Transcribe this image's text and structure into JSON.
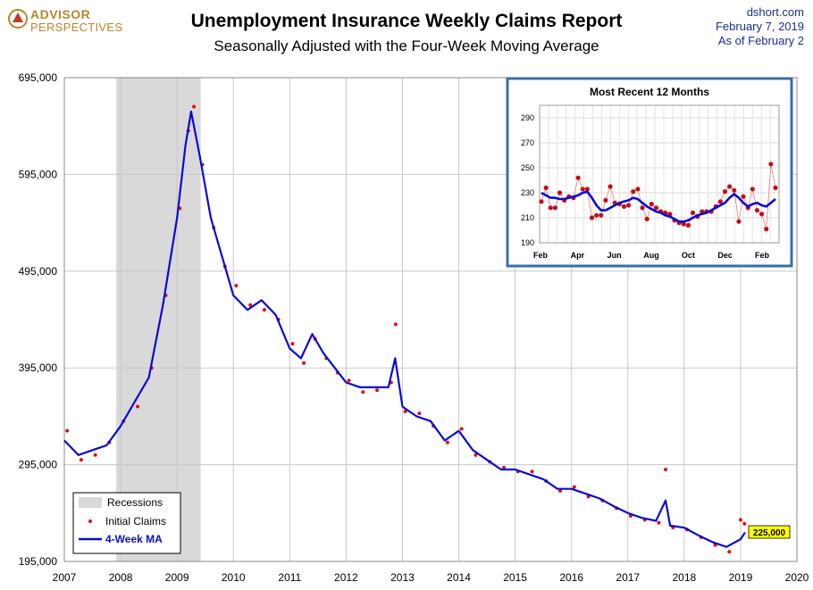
{
  "header": {
    "title": "Unemployment Insurance Weekly Claims Report",
    "subtitle": "Seasonally Adjusted with the Four-Week Moving Average",
    "logo_line1": "ADVISOR",
    "logo_line2": "PERSPECTIVES",
    "source": "dshort.com",
    "date": "February 7, 2019",
    "asof": "As  of February 2"
  },
  "colors": {
    "ma_line": "#0a0ad6",
    "claims_dots": "#dd1111",
    "recession": "#d9d9d9",
    "inset_border": "#3a6faa",
    "callout_bg": "#ffff00"
  },
  "chart_data": [
    {
      "type": "line",
      "title": "Unemployment Insurance Weekly Claims Report",
      "x_range": [
        2007,
        2020
      ],
      "x_ticks": [
        "2007",
        "2008",
        "2009",
        "2010",
        "2011",
        "2012",
        "2013",
        "2014",
        "2015",
        "2016",
        "2017",
        "2018",
        "2019",
        "2020"
      ],
      "ylim": [
        195000,
        695000
      ],
      "y_ticks": [
        "195,000",
        "295,000",
        "395,000",
        "495,000",
        "595,000",
        "695,000"
      ],
      "grid": true,
      "legend_position": "bottom-left",
      "legend": [
        "Recessions",
        "Initial Claims",
        "4-Week MA"
      ],
      "recession": {
        "start": 2007.92,
        "end": 2009.42
      },
      "callout": "225,000",
      "series": [
        {
          "name": "4-Week MA",
          "style": "line",
          "x": [
            2007.0,
            2007.25,
            2007.5,
            2007.75,
            2008.0,
            2008.25,
            2008.5,
            2008.75,
            2009.0,
            2009.15,
            2009.25,
            2009.4,
            2009.6,
            2009.8,
            2010.0,
            2010.25,
            2010.5,
            2010.75,
            2011.0,
            2011.2,
            2011.4,
            2011.6,
            2011.8,
            2012.0,
            2012.25,
            2012.5,
            2012.75,
            2012.87,
            2013.0,
            2013.25,
            2013.5,
            2013.75,
            2014.0,
            2014.25,
            2014.5,
            2014.75,
            2015.0,
            2015.25,
            2015.5,
            2015.75,
            2016.0,
            2016.25,
            2016.5,
            2016.75,
            2017.0,
            2017.25,
            2017.5,
            2017.67,
            2017.75,
            2018.0,
            2018.25,
            2018.5,
            2018.75,
            2019.0,
            2019.08
          ],
          "values": [
            320000,
            305000,
            310000,
            315000,
            335000,
            360000,
            385000,
            460000,
            550000,
            625000,
            660000,
            615000,
            550000,
            510000,
            470000,
            455000,
            465000,
            450000,
            415000,
            405000,
            430000,
            410000,
            395000,
            380000,
            375000,
            375000,
            375000,
            405000,
            355000,
            345000,
            340000,
            320000,
            330000,
            310000,
            300000,
            290000,
            290000,
            285000,
            280000,
            270000,
            270000,
            265000,
            260000,
            252000,
            245000,
            240000,
            237000,
            258000,
            232000,
            230000,
            222000,
            215000,
            210000,
            218000,
            225000
          ]
        },
        {
          "name": "Initial Claims",
          "style": "markers",
          "x": [
            2007.05,
            2007.3,
            2007.55,
            2007.8,
            2008.05,
            2008.3,
            2008.55,
            2008.8,
            2009.05,
            2009.2,
            2009.3,
            2009.45,
            2009.65,
            2009.85,
            2010.05,
            2010.3,
            2010.55,
            2010.8,
            2011.05,
            2011.25,
            2011.45,
            2011.65,
            2011.85,
            2012.05,
            2012.3,
            2012.55,
            2012.8,
            2012.88,
            2013.05,
            2013.3,
            2013.55,
            2013.8,
            2014.05,
            2014.3,
            2014.55,
            2014.8,
            2015.05,
            2015.3,
            2015.55,
            2015.8,
            2016.05,
            2016.3,
            2016.55,
            2016.8,
            2017.05,
            2017.3,
            2017.55,
            2017.67,
            2017.8,
            2018.05,
            2018.3,
            2018.55,
            2018.8,
            2019.0,
            2019.07
          ],
          "values": [
            330000,
            300000,
            305000,
            318000,
            340000,
            355000,
            395000,
            470000,
            560000,
            640000,
            665000,
            605000,
            540000,
            500000,
            480000,
            460000,
            455000,
            445000,
            420000,
            400000,
            425000,
            405000,
            390000,
            382000,
            370000,
            372000,
            380000,
            440000,
            350000,
            348000,
            335000,
            318000,
            332000,
            305000,
            298000,
            292000,
            288000,
            288000,
            278000,
            268000,
            272000,
            262000,
            258000,
            250000,
            242000,
            238000,
            235000,
            290000,
            230000,
            228000,
            220000,
            212000,
            205000,
            238000,
            234000
          ]
        }
      ]
    },
    {
      "type": "line",
      "title": "Most Recent 12 Months",
      "x_ticks": [
        "Feb",
        "Apr",
        "Jun",
        "Aug",
        "Oct",
        "Dec",
        "Feb"
      ],
      "ylim": [
        190,
        300
      ],
      "y_ticks": [
        "190",
        "210",
        "230",
        "250",
        "270",
        "290"
      ],
      "grid": true,
      "series": [
        {
          "name": "4-Week MA",
          "style": "line",
          "values": [
            230,
            228,
            226,
            226,
            225,
            225,
            226,
            227,
            228,
            230,
            231,
            226,
            220,
            216,
            216,
            218,
            220,
            222,
            223,
            224,
            226,
            225,
            222,
            219,
            217,
            215,
            214,
            212,
            211,
            209,
            207,
            207,
            208,
            210,
            212,
            213,
            214,
            216,
            218,
            220,
            222,
            226,
            229,
            226,
            222,
            219,
            221,
            222,
            220,
            219,
            222,
            225
          ]
        },
        {
          "name": "Initial Claims",
          "style": "markers",
          "values": [
            223,
            234,
            218,
            218,
            230,
            224,
            227,
            226,
            242,
            233,
            233,
            210,
            212,
            212,
            224,
            235,
            222,
            221,
            219,
            220,
            231,
            233,
            218,
            209,
            221,
            218,
            215,
            214,
            213,
            208,
            206,
            205,
            204,
            214,
            211,
            215,
            215,
            215,
            219,
            223,
            231,
            235,
            232,
            207,
            227,
            218,
            233,
            216,
            213,
            201,
            253,
            234
          ]
        }
      ]
    }
  ]
}
